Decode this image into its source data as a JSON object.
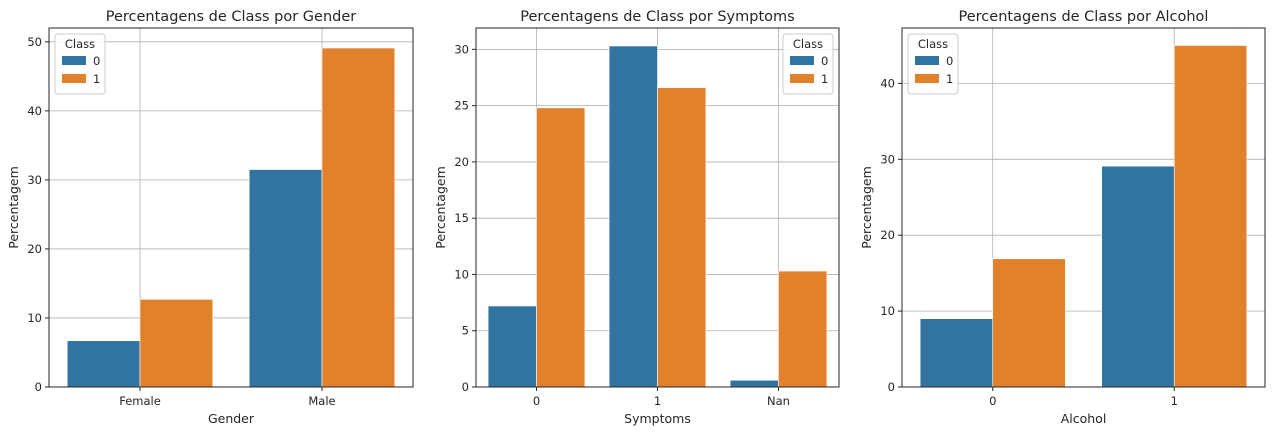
{
  "colors": {
    "class_0": "#3274a1",
    "class_1": "#e1812c"
  },
  "chart_data": [
    {
      "type": "bar",
      "title": "Percentagens de Class por Gender",
      "xlabel": "Gender",
      "ylabel": "Percentagem",
      "categories": [
        "Female",
        "Male"
      ],
      "ylim": [
        0,
        52
      ],
      "yticks": [
        0,
        10,
        20,
        30,
        40,
        50
      ],
      "grid": true,
      "legend": {
        "title": "Class",
        "position": "top-left"
      },
      "series": [
        {
          "name": "0",
          "values": [
            6.7,
            31.5
          ]
        },
        {
          "name": "1",
          "values": [
            12.7,
            49.1
          ]
        }
      ]
    },
    {
      "type": "bar",
      "title": "Percentagens de Class por Symptoms",
      "xlabel": "Symptoms",
      "ylabel": "Percentagem",
      "categories": [
        "0",
        "1",
        "Nan"
      ],
      "ylim": [
        0,
        31.9
      ],
      "yticks": [
        0,
        5,
        10,
        15,
        20,
        25,
        30
      ],
      "grid": true,
      "legend": {
        "title": "Class",
        "position": "top-right"
      },
      "series": [
        {
          "name": "0",
          "values": [
            7.2,
            30.3,
            0.6
          ]
        },
        {
          "name": "1",
          "values": [
            24.8,
            26.6,
            10.3
          ]
        }
      ]
    },
    {
      "type": "bar",
      "title": "Percentagens de Class por Alcohol",
      "xlabel": "Alcohol",
      "ylabel": "Percentagem",
      "categories": [
        "0",
        "1"
      ],
      "ylim": [
        0,
        47.3
      ],
      "yticks": [
        0,
        10,
        20,
        30,
        40
      ],
      "grid": true,
      "legend": {
        "title": "Class",
        "position": "top-left"
      },
      "series": [
        {
          "name": "0",
          "values": [
            9.0,
            29.1
          ]
        },
        {
          "name": "1",
          "values": [
            16.9,
            45.0
          ]
        }
      ]
    }
  ]
}
